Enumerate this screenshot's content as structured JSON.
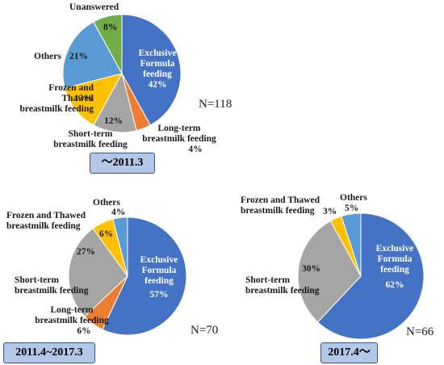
{
  "chart_data": [
    {
      "type": "pie",
      "period": "～2011.3",
      "n_label": "N=118",
      "slices": [
        {
          "name": [
            "Exclusive",
            "Formula",
            "feeding"
          ],
          "value": 42,
          "pct_label": "42%",
          "color": "#4472c4"
        },
        {
          "name": [
            "Long-term",
            "breastmilk feeding"
          ],
          "value": 4,
          "pct_label": "4%",
          "color": "#ed7d31"
        },
        {
          "name": [
            "Short-term",
            "breastmilk feeding"
          ],
          "value": 12,
          "pct_label": "12%",
          "color": "#a5a5a5"
        },
        {
          "name": [
            "Frozen and",
            "Thawed",
            "breastmilk feeding"
          ],
          "value": 13,
          "pct_label": "13%",
          "color": "#ffc000"
        },
        {
          "name": [
            "Others"
          ],
          "value": 21,
          "pct_label": "21%",
          "color": "#5b9bd5"
        },
        {
          "name": [
            "Unanswered"
          ],
          "value": 8,
          "pct_label": "8%",
          "color": "#70ad47"
        }
      ]
    },
    {
      "type": "pie",
      "period": "2011.4~2017.3",
      "n_label": "N=70",
      "slices": [
        {
          "name": [
            "Exclusive",
            "Formula",
            "feeding"
          ],
          "value": 57,
          "pct_label": "57%",
          "color": "#4472c4"
        },
        {
          "name": [
            "Long-term",
            "breastmilk feeding"
          ],
          "value": 6,
          "pct_label": "6%",
          "color": "#ed7d31"
        },
        {
          "name": [
            "Short-term",
            "breastmilk feeding"
          ],
          "value": 27,
          "pct_label": "27%",
          "color": "#a5a5a5"
        },
        {
          "name": [
            "Frozen and Thawed",
            "breastmilk feeding"
          ],
          "value": 6,
          "pct_label": "6%",
          "color": "#ffc000"
        },
        {
          "name": [
            "Others"
          ],
          "value": 4,
          "pct_label": "4%",
          "color": "#5b9bd5"
        }
      ]
    },
    {
      "type": "pie",
      "period": "2017.4～",
      "n_label": "N=66",
      "slices": [
        {
          "name": [
            "Exclusive",
            "Formula",
            "feeding"
          ],
          "value": 62,
          "pct_label": "62%",
          "color": "#4472c4"
        },
        {
          "name": [
            "Short-term",
            "breastmilk feeding"
          ],
          "value": 30,
          "pct_label": "30%",
          "color": "#a5a5a5"
        },
        {
          "name": [
            "Frozen and Thawed",
            "breastmilk feeding"
          ],
          "value": 3,
          "pct_label": "3%",
          "color": "#ffc000"
        },
        {
          "name": [
            "Others"
          ],
          "value": 5,
          "pct_label": "5%",
          "color": "#5b9bd5"
        }
      ]
    }
  ]
}
